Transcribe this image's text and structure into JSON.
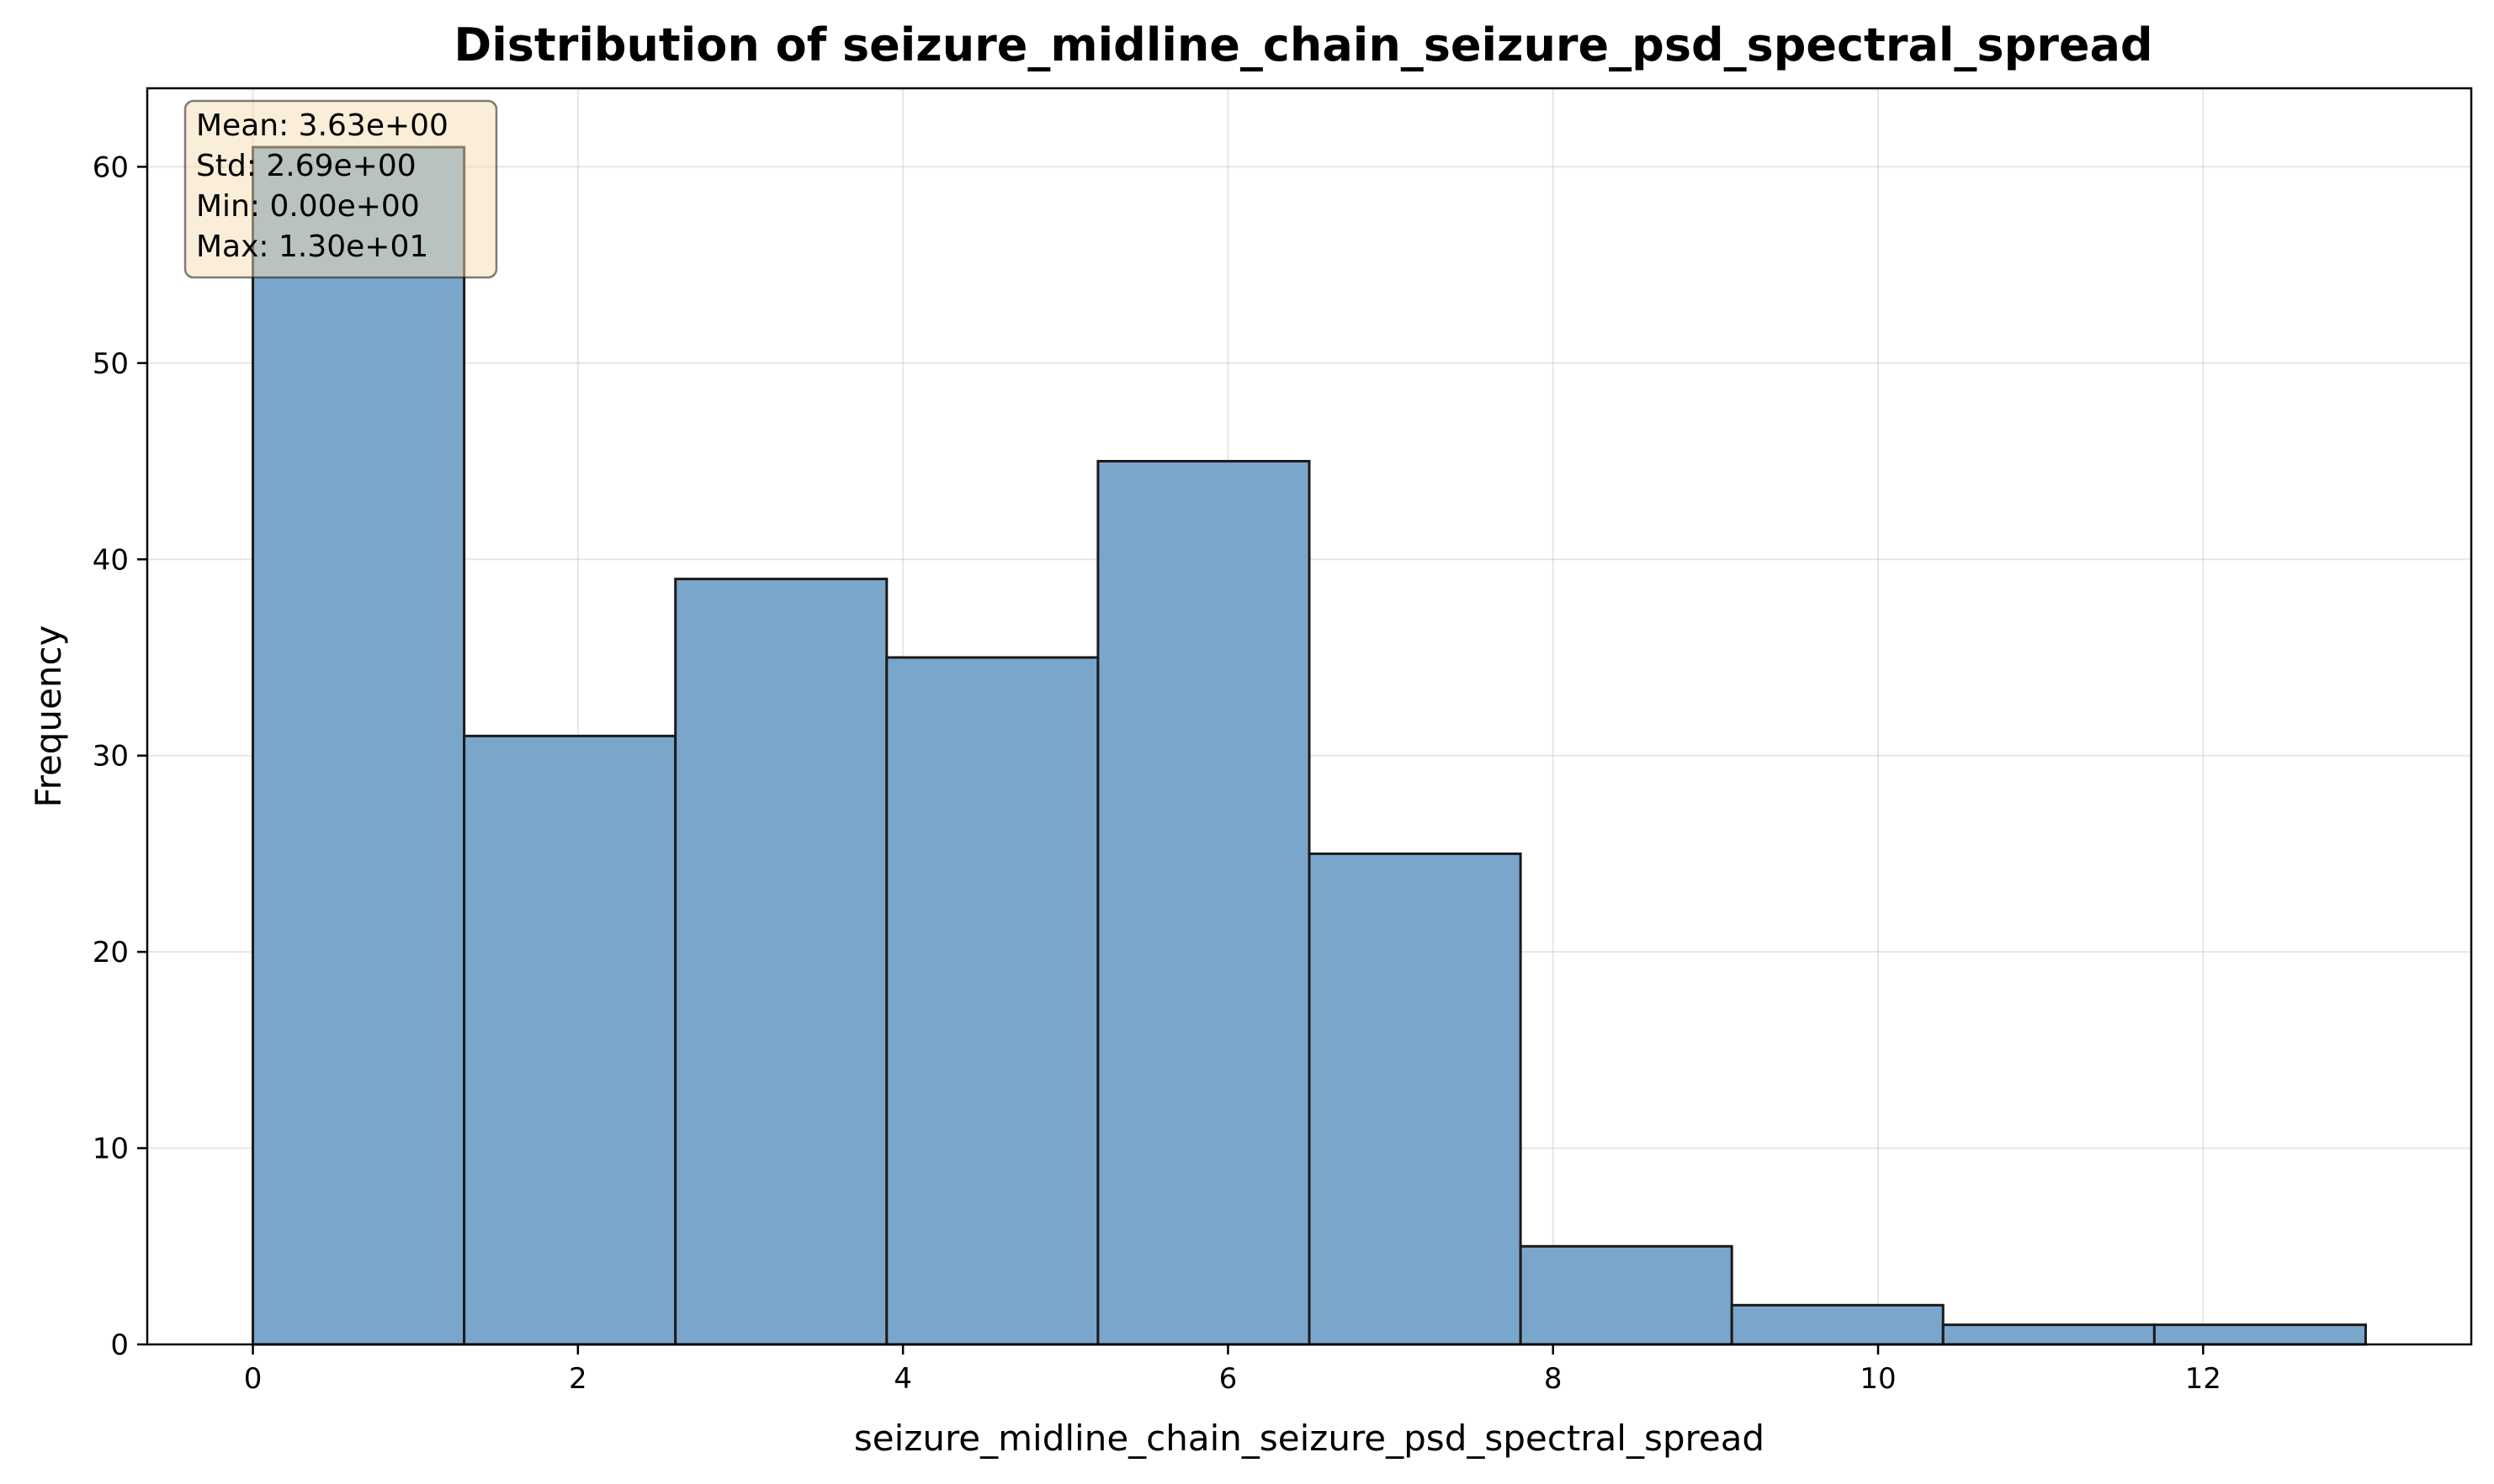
{
  "chart_data": {
    "type": "bar",
    "title": "Distribution of seizure_midline_chain_seizure_psd_spectral_spread",
    "xlabel": "seizure_midline_chain_seizure_psd_spectral_spread",
    "ylabel": "Frequency",
    "xlim": [
      -0.65,
      13.65
    ],
    "ylim": [
      0,
      64
    ],
    "x_ticks": [
      0,
      2,
      4,
      6,
      8,
      10,
      12
    ],
    "y_ticks": [
      0,
      10,
      20,
      30,
      40,
      50,
      60
    ],
    "grid": true,
    "bin_edges": [
      0,
      1.3,
      2.6,
      3.9,
      5.2,
      6.5,
      7.8,
      9.1,
      10.4,
      11.7,
      13.0
    ],
    "values": [
      61,
      31,
      39,
      35,
      45,
      25,
      5,
      2,
      1,
      1
    ],
    "bar_color": "#7ba6cb",
    "edge_color": "#1a1a1a",
    "stats_box": {
      "lines": [
        "Mean: 3.63e+00",
        "Std: 2.69e+00",
        "Min: 0.00e+00",
        "Max: 1.30e+01"
      ],
      "placement": "top-left",
      "background": "#f5deb3"
    }
  }
}
